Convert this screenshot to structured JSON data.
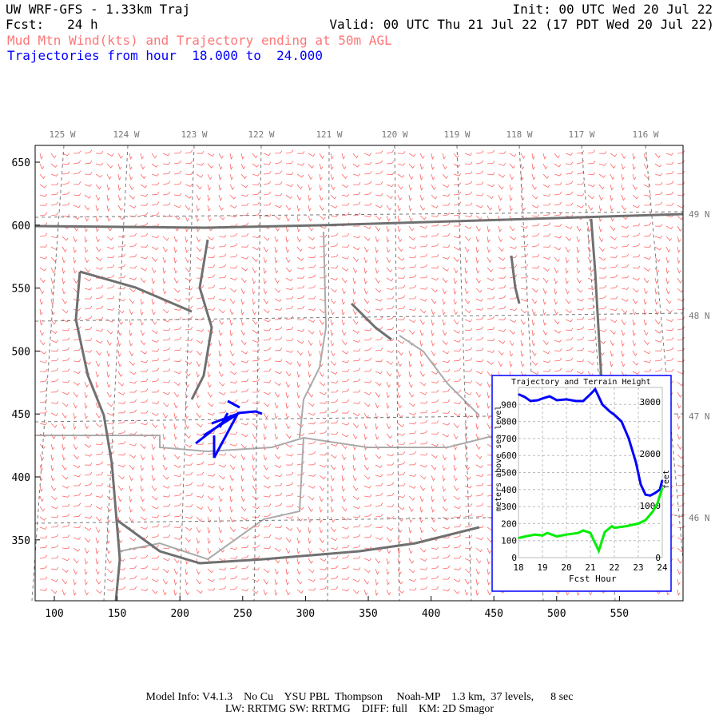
{
  "header": {
    "title": "UW WRF-GFS - 1.33km Traj",
    "init": "Init: 00 UTC Wed 20 Jul 22",
    "fcst": "Fcst:   24 h",
    "valid": "Valid: 00 UTC Thu 21 Jul 22 (17 PDT Wed 20 Jul 22)",
    "field": "Mud Mtn Wind(kts) and Trajectory ending at 50m AGL",
    "traj_range": "Trajectories from hour  18.000 to  24.000"
  },
  "colors": {
    "wind": "#ff6666",
    "trajectory": "#0000ff",
    "terrain": "#00ee00",
    "coast": "#707070",
    "border": "#aaaaaa",
    "county": "#bb66cc"
  },
  "map": {
    "x_ticks": [
      "100",
      "150",
      "200",
      "250",
      "300",
      "350",
      "400",
      "450",
      "500",
      "550"
    ],
    "y_ticks": [
      "650",
      "600",
      "550",
      "500",
      "450",
      "400",
      "350"
    ],
    "lon_labels": [
      "125 W",
      "124 W",
      "123 W",
      "122 W",
      "121 W",
      "120 W",
      "119 W",
      "118 W",
      "117 W",
      "116 W"
    ],
    "lat_labels": [
      "49 N",
      "48 N",
      "47 N",
      "46 N"
    ]
  },
  "chart_data": {
    "type": "line",
    "title": "Trajectory and Terrain Height",
    "xlabel": "Fcst Hour",
    "ylabel": "meters above sea level",
    "ylabel_right": "feet",
    "xlim": [
      18,
      24
    ],
    "ylim": [
      0,
      1000
    ],
    "x_ticks": [
      "18",
      "19",
      "20",
      "21",
      "22",
      "23",
      "24"
    ],
    "y_ticks": [
      "0",
      "100",
      "200",
      "300",
      "400",
      "500",
      "600",
      "700",
      "800",
      "900"
    ],
    "y_ticks_right": [
      "0",
      "1000",
      "2000",
      "3000"
    ],
    "grid": true,
    "series": [
      {
        "color": "#0000ff",
        "x": [
          18,
          18.25,
          18.5,
          18.8,
          19,
          19.3,
          19.6,
          20,
          20.4,
          20.7,
          21,
          21.2,
          21.5,
          21.8,
          22,
          22.3,
          22.6,
          22.9,
          23.1,
          23.3,
          23.5,
          23.7,
          23.9,
          24
        ],
        "y": [
          960,
          945,
          920,
          925,
          935,
          948,
          925,
          930,
          920,
          920,
          960,
          990,
          900,
          860,
          840,
          800,
          700,
          560,
          430,
          370,
          365,
          380,
          400,
          455
        ]
      },
      {
        "color": "#00ee00",
        "x": [
          18,
          18.3,
          18.7,
          19,
          19.2,
          19.6,
          20,
          20.5,
          20.7,
          21,
          21.15,
          21.35,
          21.6,
          21.9,
          22,
          22.5,
          23,
          23.3,
          23.6,
          23.8,
          24
        ],
        "y": [
          115,
          125,
          135,
          130,
          145,
          125,
          135,
          145,
          160,
          145,
          100,
          40,
          150,
          185,
          175,
          185,
          200,
          220,
          270,
          320,
          410
        ]
      }
    ]
  },
  "footer": {
    "line1": "Model Info: V4.1.3    No Cu    YSU PBL  Thompson     Noah-MP    1.3 km,  37 levels,      8 sec",
    "line2": "LW: RRTMG SW: RRTMG    DIFF: full    KM: 2D Smagor"
  }
}
